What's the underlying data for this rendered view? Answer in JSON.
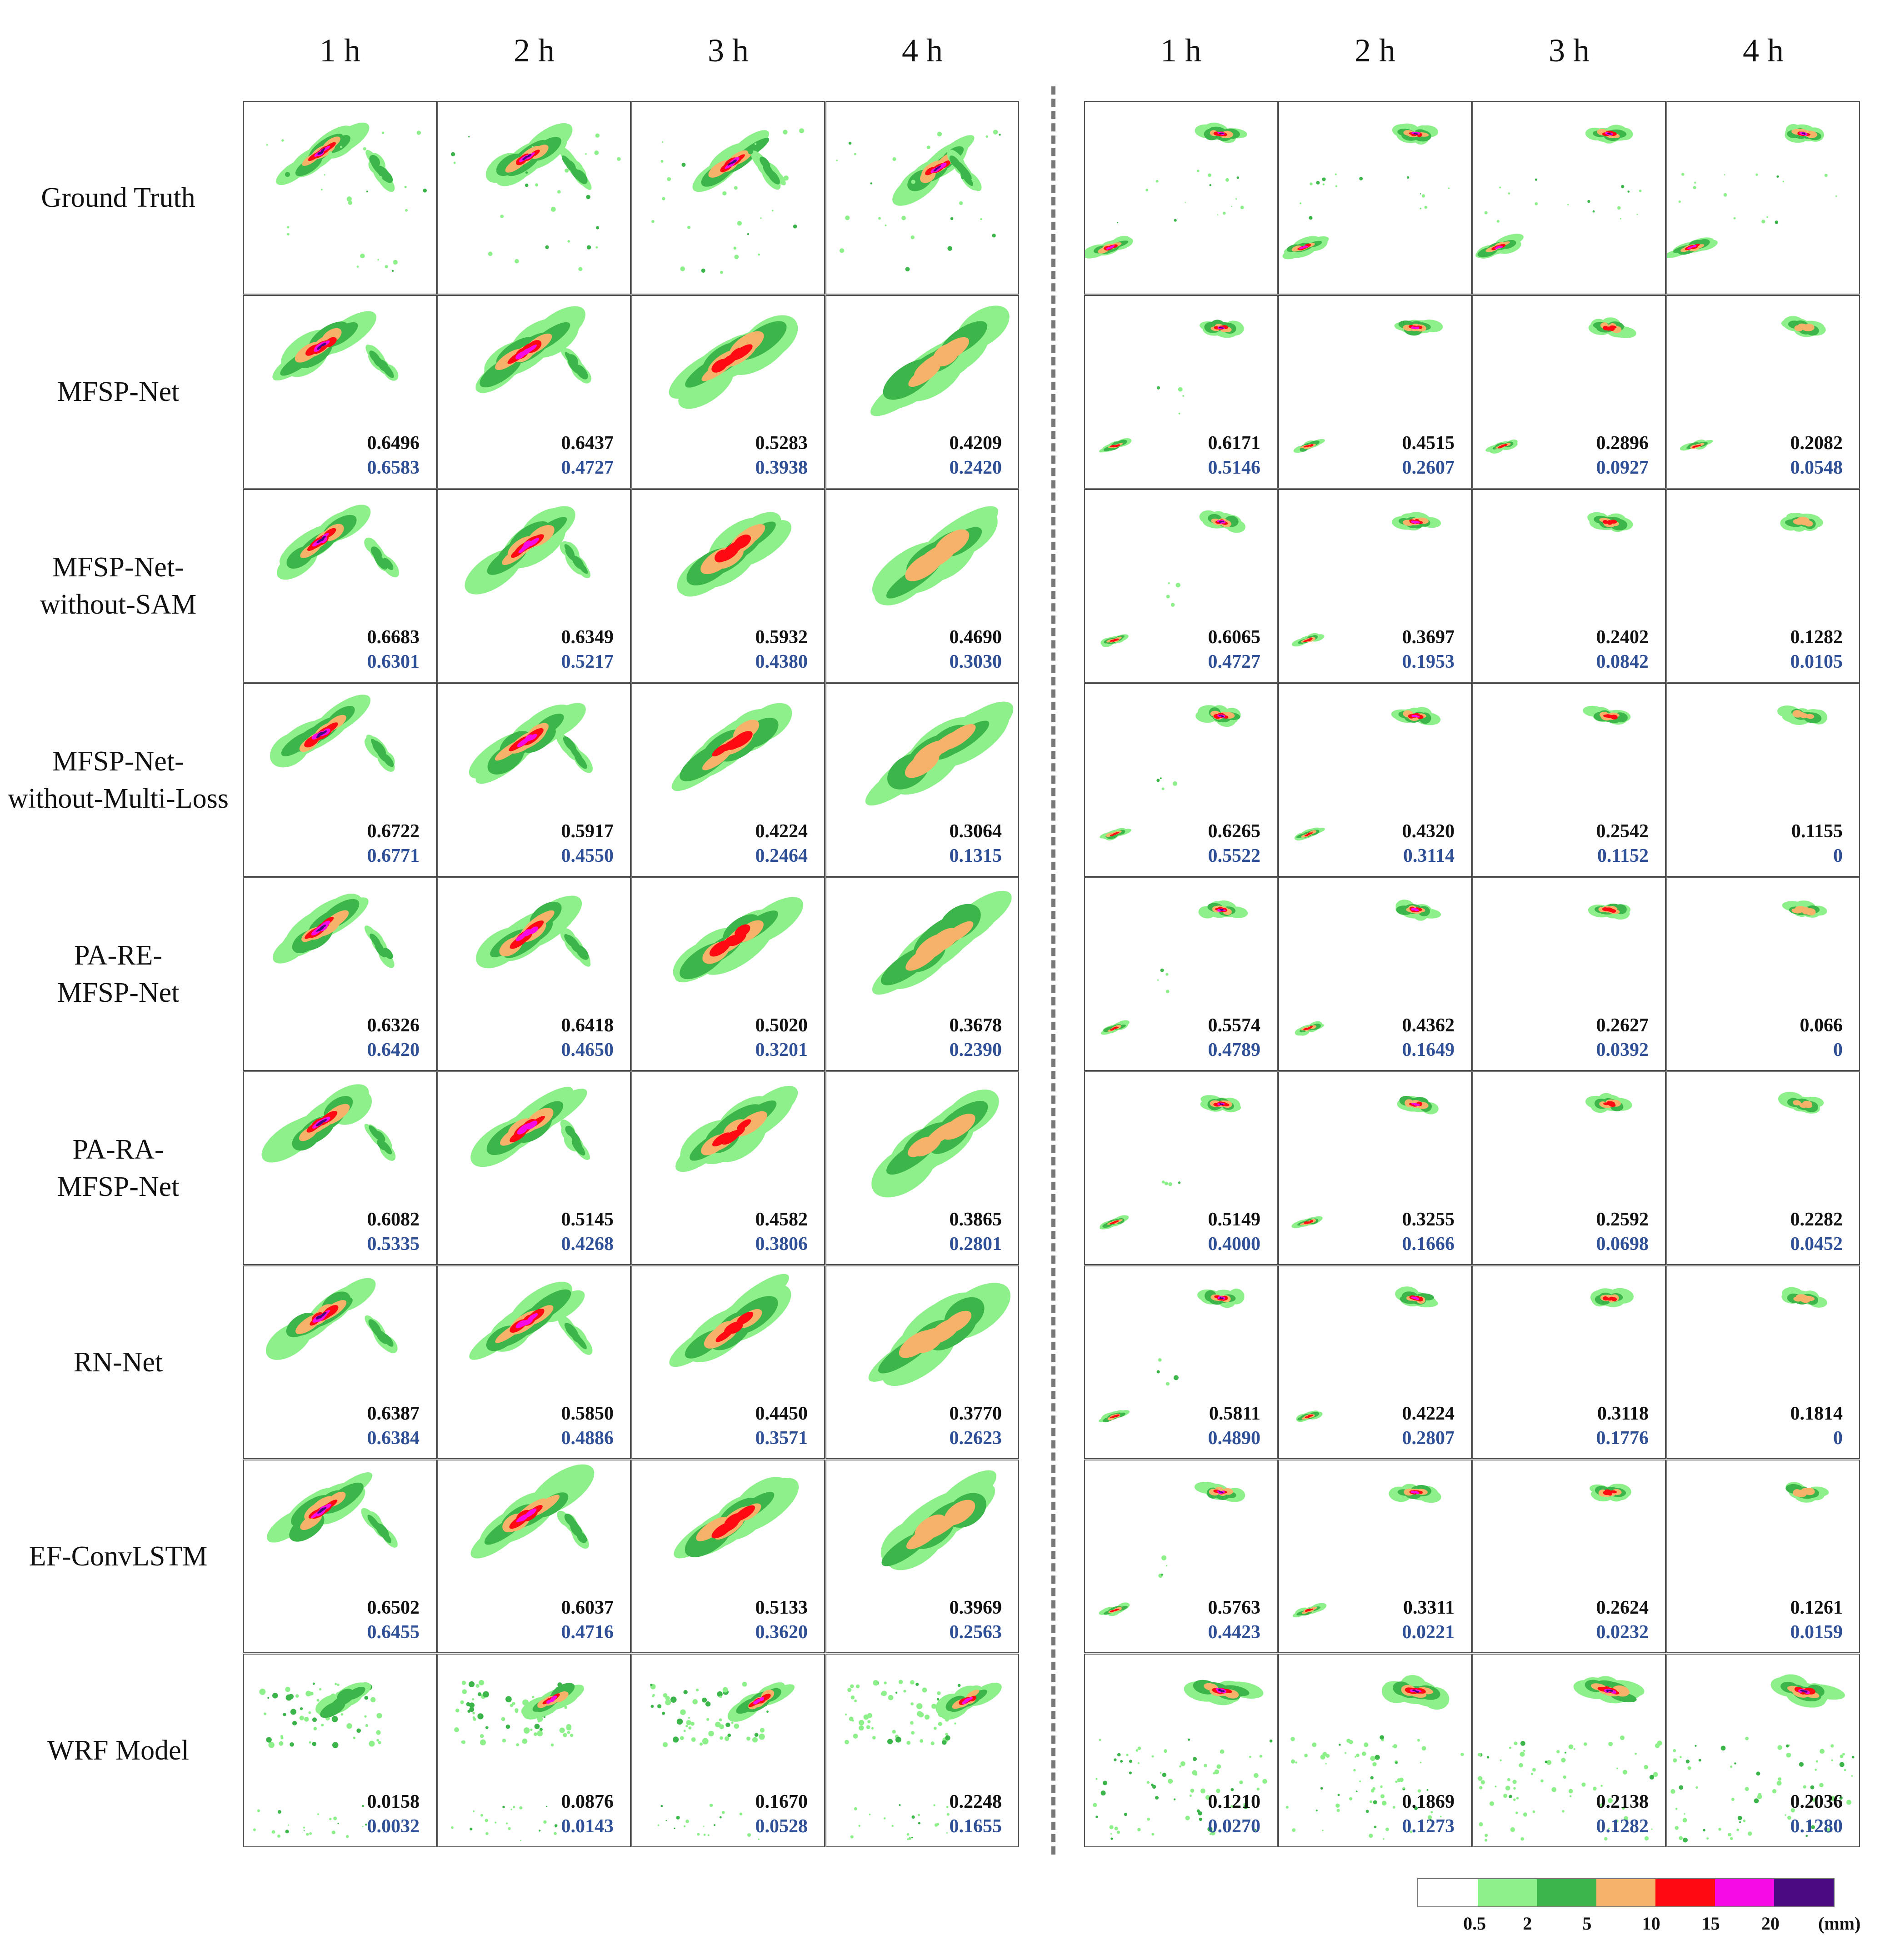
{
  "column_headers": [
    "1 h",
    "2 h",
    "3 h",
    "4 h",
    "1 h",
    "2 h",
    "3 h",
    "4 h"
  ],
  "rows": [
    {
      "label_lines": [
        "Ground Truth"
      ],
      "scores": null
    },
    {
      "label_lines": [
        "MFSP-Net"
      ],
      "scores": [
        [
          "0.6496",
          "0.6583"
        ],
        [
          "0.6437",
          "0.4727"
        ],
        [
          "0.5283",
          "0.3938"
        ],
        [
          "0.4209",
          "0.2420"
        ],
        [
          "0.6171",
          "0.5146"
        ],
        [
          "0.4515",
          "0.2607"
        ],
        [
          "0.2896",
          "0.0927"
        ],
        [
          "0.2082",
          "0.0548"
        ]
      ]
    },
    {
      "label_lines": [
        "MFSP-Net-",
        "without-SAM"
      ],
      "scores": [
        [
          "0.6683",
          "0.6301"
        ],
        [
          "0.6349",
          "0.5217"
        ],
        [
          "0.5932",
          "0.4380"
        ],
        [
          "0.4690",
          "0.3030"
        ],
        [
          "0.6065",
          "0.4727"
        ],
        [
          "0.3697",
          "0.1953"
        ],
        [
          "0.2402",
          "0.0842"
        ],
        [
          "0.1282",
          "0.0105"
        ]
      ]
    },
    {
      "label_lines": [
        "MFSP-Net-",
        "without-Multi-Loss"
      ],
      "scores": [
        [
          "0.6722",
          "0.6771"
        ],
        [
          "0.5917",
          "0.4550"
        ],
        [
          "0.4224",
          "0.2464"
        ],
        [
          "0.3064",
          "0.1315"
        ],
        [
          "0.6265",
          "0.5522"
        ],
        [
          "0.4320",
          "0.3114"
        ],
        [
          "0.2542",
          "0.1152"
        ],
        [
          "0.1155",
          "0"
        ]
      ]
    },
    {
      "label_lines": [
        "PA-RE-",
        "MFSP-Net"
      ],
      "scores": [
        [
          "0.6326",
          "0.6420"
        ],
        [
          "0.6418",
          "0.4650"
        ],
        [
          "0.5020",
          "0.3201"
        ],
        [
          "0.3678",
          "0.2390"
        ],
        [
          "0.5574",
          "0.4789"
        ],
        [
          "0.4362",
          "0.1649"
        ],
        [
          "0.2627",
          "0.0392"
        ],
        [
          "0.066",
          "0"
        ]
      ]
    },
    {
      "label_lines": [
        "PA-RA-",
        "MFSP-Net"
      ],
      "scores": [
        [
          "0.6082",
          "0.5335"
        ],
        [
          "0.5145",
          "0.4268"
        ],
        [
          "0.4582",
          "0.3806"
        ],
        [
          "0.3865",
          "0.2801"
        ],
        [
          "0.5149",
          "0.4000"
        ],
        [
          "0.3255",
          "0.1666"
        ],
        [
          "0.2592",
          "0.0698"
        ],
        [
          "0.2282",
          "0.0452"
        ]
      ]
    },
    {
      "label_lines": [
        "RN-Net"
      ],
      "scores": [
        [
          "0.6387",
          "0.6384"
        ],
        [
          "0.5850",
          "0.4886"
        ],
        [
          "0.4450",
          "0.3571"
        ],
        [
          "0.3770",
          "0.2623"
        ],
        [
          "0.5811",
          "0.4890"
        ],
        [
          "0.4224",
          "0.2807"
        ],
        [
          "0.3118",
          "0.1776"
        ],
        [
          "0.1814",
          "0"
        ]
      ]
    },
    {
      "label_lines": [
        "EF-ConvLSTM"
      ],
      "scores": [
        [
          "0.6502",
          "0.6455"
        ],
        [
          "0.6037",
          "0.4716"
        ],
        [
          "0.5133",
          "0.3620"
        ],
        [
          "0.3969",
          "0.2563"
        ],
        [
          "0.5763",
          "0.4423"
        ],
        [
          "0.3311",
          "0.0221"
        ],
        [
          "0.2624",
          "0.0232"
        ],
        [
          "0.1261",
          "0.0159"
        ]
      ]
    },
    {
      "label_lines": [
        "WRF Model"
      ],
      "scores": [
        [
          "0.0158",
          "0.0032"
        ],
        [
          "0.0876",
          "0.0143"
        ],
        [
          "0.1670",
          "0.0528"
        ],
        [
          "0.2248",
          "0.1655"
        ],
        [
          "0.1210",
          "0.0270"
        ],
        [
          "0.1869",
          "0.1273"
        ],
        [
          "0.2138",
          "0.1282"
        ],
        [
          "0.2036",
          "0.1280"
        ]
      ]
    }
  ],
  "colorbar": {
    "colors": [
      "#ffffff",
      "#8ef08a",
      "#3cb54a",
      "#f7b26a",
      "#ff0a12",
      "#f50ae6",
      "#4a0a82"
    ],
    "ticks": [
      "0.5",
      "2",
      "5",
      "10",
      "15",
      "20"
    ],
    "unit": "(mm)"
  }
}
